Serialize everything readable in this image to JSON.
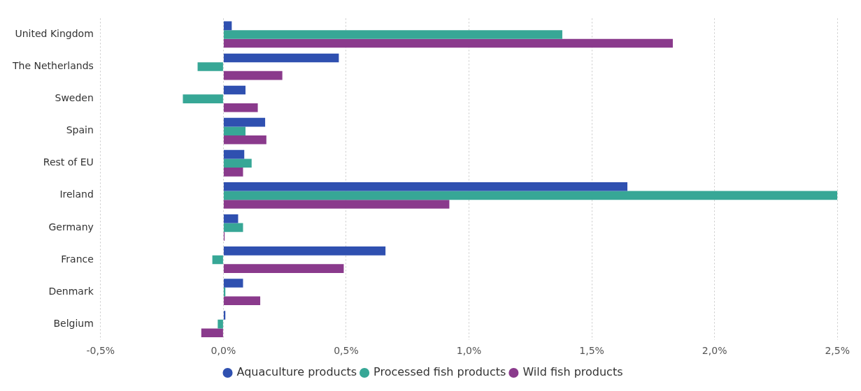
{
  "chart_data": {
    "type": "bar",
    "orientation": "horizontal",
    "categories": [
      "United Kingdom",
      "The Netherlands",
      "Sweden",
      "Spain",
      "Rest of EU",
      "Ireland",
      "Germany",
      "France",
      "Denmark",
      "Belgium"
    ],
    "series": [
      {
        "name": "Aquaculture products",
        "color": "#2f50b0",
        "values": [
          0.034,
          0.47,
          0.09,
          0.17,
          0.085,
          1.645,
          0.06,
          0.66,
          0.08,
          0.008
        ]
      },
      {
        "name": "Processed fish products",
        "color": "#37a796",
        "values": [
          1.38,
          -0.105,
          -0.165,
          0.09,
          0.115,
          2.5,
          0.08,
          -0.045,
          0.008,
          -0.023
        ]
      },
      {
        "name": "Wild fish products",
        "color": "#8a3a8c",
        "values": [
          1.83,
          0.24,
          0.14,
          0.175,
          0.08,
          0.92,
          0.005,
          0.49,
          0.15,
          -0.09
        ]
      }
    ],
    "xlim": [
      -0.5,
      2.5
    ],
    "xticks": [
      {
        "value": -0.5,
        "label": "-0,5%"
      },
      {
        "value": 0,
        "label": "0,0%"
      },
      {
        "value": 0.5,
        "label": "0,5%"
      },
      {
        "value": 1,
        "label": "1,0%"
      },
      {
        "value": 1.5,
        "label": "1,5%"
      },
      {
        "value": 2,
        "label": "2,0%"
      },
      {
        "value": 2.5,
        "label": "2,5%"
      }
    ],
    "grid": "x",
    "legend": "bottom",
    "marker": "circle"
  }
}
